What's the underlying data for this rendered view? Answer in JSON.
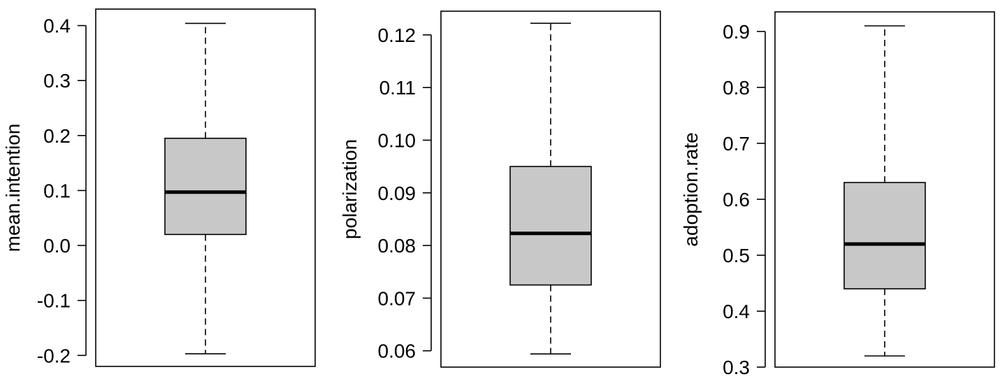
{
  "chart_data": [
    {
      "type": "box",
      "ylabel": "mean.intention",
      "yticks": [
        -0.2,
        -0.1,
        0.0,
        0.1,
        0.2,
        0.3,
        0.4
      ],
      "ytick_labels": [
        "-0.2",
        "-0.1",
        "0.0",
        "0.1",
        "0.2",
        "0.3",
        "0.4"
      ],
      "ylim": [
        -0.22,
        0.43
      ],
      "box": {
        "whisker_low": -0.197,
        "q1": 0.02,
        "median": 0.097,
        "q3": 0.195,
        "whisker_high": 0.404
      },
      "box_color": "#c8c8c8",
      "grid": false,
      "legend": "none"
    },
    {
      "type": "box",
      "ylabel": "polarization",
      "yticks": [
        0.06,
        0.07,
        0.08,
        0.09,
        0.1,
        0.11,
        0.12
      ],
      "ytick_labels": [
        "0.06",
        "0.07",
        "0.08",
        "0.09",
        "0.10",
        "0.11",
        "0.12"
      ],
      "ylim": [
        0.0569,
        0.1245
      ],
      "box": {
        "whisker_low": 0.0594,
        "q1": 0.0725,
        "median": 0.0823,
        "q3": 0.095,
        "whisker_high": 0.1222
      },
      "box_color": "#c8c8c8",
      "grid": false,
      "legend": "none"
    },
    {
      "type": "box",
      "ylabel": "adoption.rate",
      "yticks": [
        0.3,
        0.4,
        0.5,
        0.6,
        0.7,
        0.8,
        0.9
      ],
      "ytick_labels": [
        "0.3",
        "0.4",
        "0.5",
        "0.6",
        "0.7",
        "0.8",
        "0.9"
      ],
      "ylim": [
        0.3,
        0.935
      ],
      "box": {
        "whisker_low": 0.32,
        "q1": 0.44,
        "median": 0.52,
        "q3": 0.63,
        "whisker_high": 0.91
      },
      "box_color": "#c8c8c8",
      "grid": false,
      "legend": "none"
    }
  ]
}
